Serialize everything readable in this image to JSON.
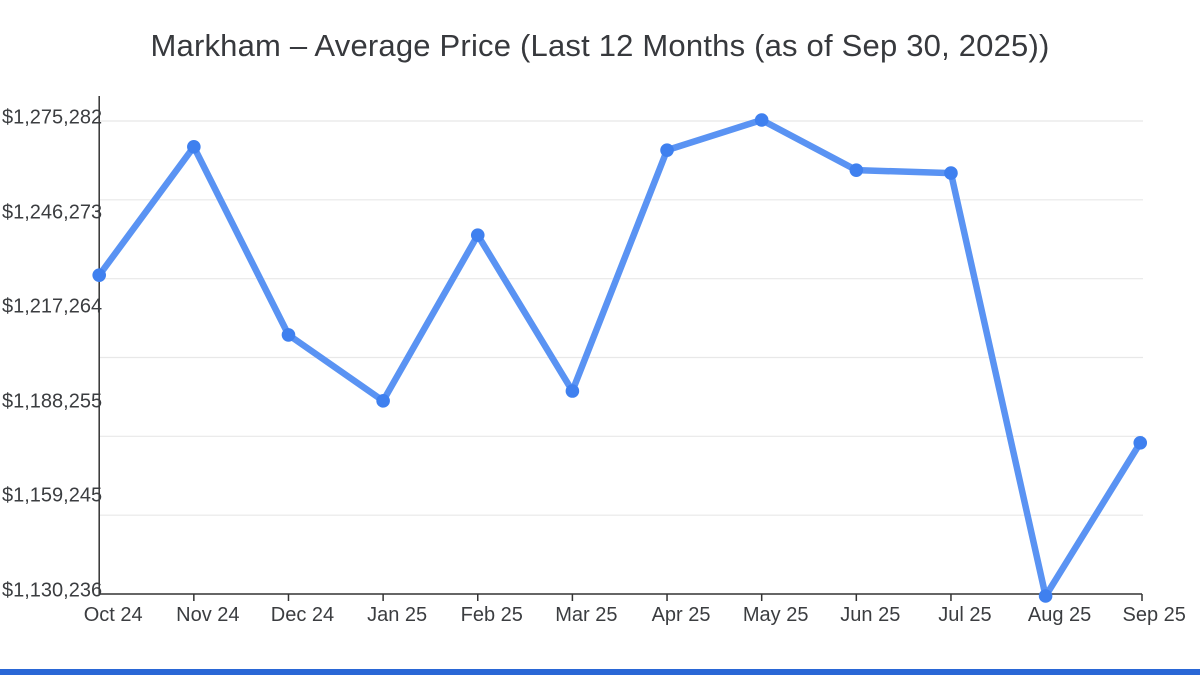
{
  "title": "Markham – Average Price (Last 12 Months (as of Sep 30, 2025))",
  "colors": {
    "line": "#5a93f3",
    "point": "#3f80ef",
    "grid": "#e8e8e8",
    "axis": "#333333",
    "accent_bar": "#2a67d6",
    "text": "#3b3d40",
    "title_text": "#37393d"
  },
  "chart_data": {
    "type": "line",
    "title": "Markham – Average Price (Last 12 Months (as of Sep 30, 2025))",
    "series_name": "Average Price",
    "categories": [
      "Oct 24",
      "Nov 24",
      "Dec 24",
      "Jan 25",
      "Feb 25",
      "Mar 25",
      "Apr 25",
      "May 25",
      "Jun 25",
      "Jul 25",
      "Aug 25",
      "Sep 25"
    ],
    "values": [
      1228000,
      1267100,
      1209800,
      1189700,
      1240200,
      1192700,
      1266100,
      1275282,
      1260000,
      1259100,
      1130236,
      1176900
    ],
    "y_tick_labels": [
      "$1,275,282",
      "$1,246,273",
      "$1,217,264",
      "$1,188,255",
      "$1,159,245",
      "$1,130,236"
    ],
    "ylim": [
      1130236,
      1275282
    ],
    "xlabel": "",
    "ylabel": "",
    "grid": "on",
    "legend": "none"
  }
}
